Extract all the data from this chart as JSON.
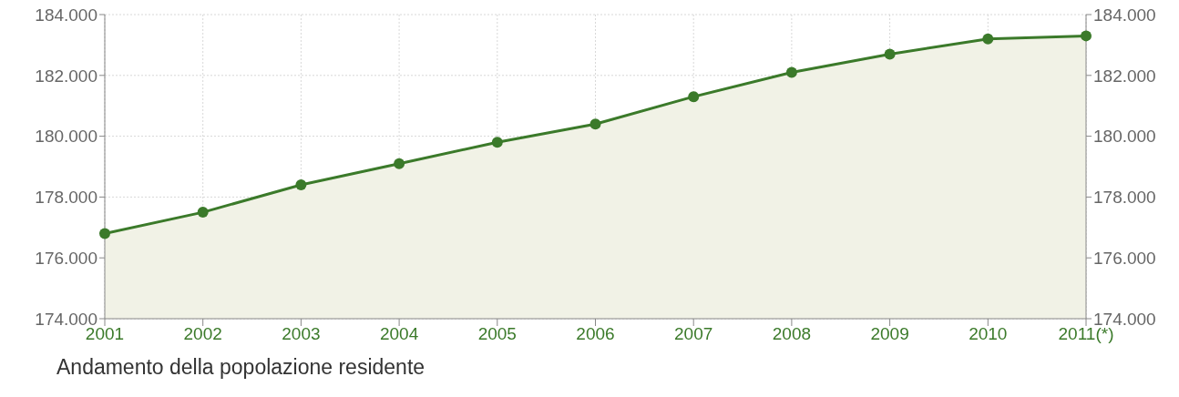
{
  "chart_data": {
    "type": "area",
    "title": "Andamento della popolazione residente",
    "categories": [
      "2001",
      "2002",
      "2003",
      "2004",
      "2005",
      "2006",
      "2007",
      "2008",
      "2009",
      "2010",
      "2011(*)"
    ],
    "series": [
      {
        "color": "#3b7a2a",
        "values": [
          176800,
          177500,
          178400,
          179100,
          179800,
          180400,
          181300,
          182100,
          182700,
          183200,
          183300
        ]
      }
    ],
    "ylim": [
      174000,
      184000
    ],
    "yticks": [
      {
        "value": 174000,
        "label": "174.000"
      },
      {
        "value": 176000,
        "label": "176.000"
      },
      {
        "value": 178000,
        "label": "178.000"
      },
      {
        "value": 180000,
        "label": "180.000"
      },
      {
        "value": 182000,
        "label": "182.000"
      },
      {
        "value": 184000,
        "label": "184.000"
      }
    ],
    "y2lim": [
      174000,
      184000
    ],
    "y2ticks": [
      {
        "value": 174000,
        "label": "174.000"
      },
      {
        "value": 176000,
        "label": "176.000"
      },
      {
        "value": 178000,
        "label": "178.000"
      },
      {
        "value": 180000,
        "label": "180.000"
      },
      {
        "value": 182000,
        "label": "182.000"
      },
      {
        "value": 184000,
        "label": "184.000"
      }
    ],
    "grid": true,
    "marker": "circle",
    "line_style": "solid",
    "legend": false
  }
}
